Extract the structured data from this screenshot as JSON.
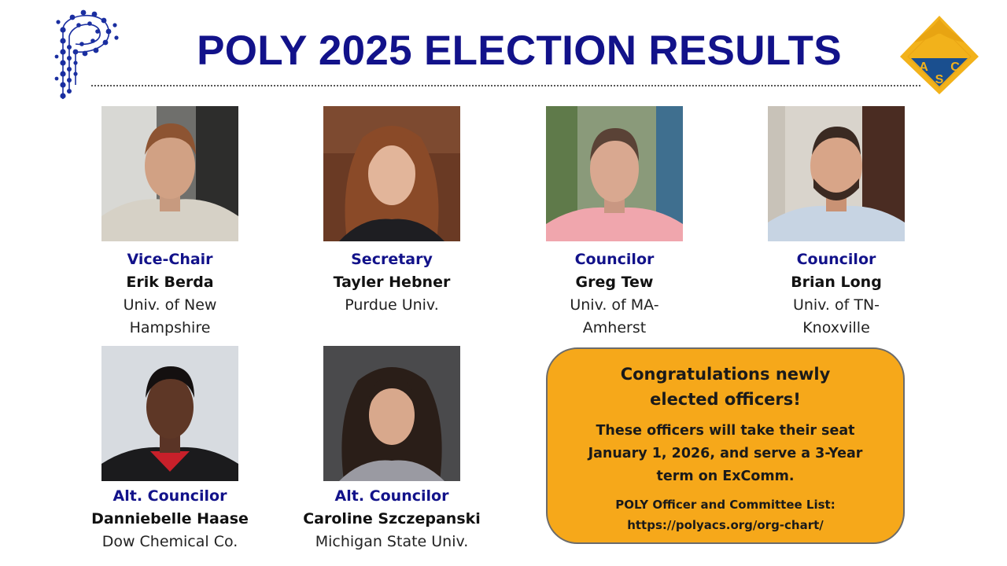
{
  "header": {
    "title": "POLY 2025 ELECTION RESULTS",
    "poly_logo": "poly-division-logo",
    "acs_logo": "acs-logo",
    "acs_logo_letters": "ACS"
  },
  "officers": [
    {
      "role": "Vice-Chair",
      "name": "Erik Berda",
      "affil_1": "Univ. of New",
      "affil_2": "Hampshire"
    },
    {
      "role": "Secretary",
      "name": "Tayler Hebner",
      "affil_1": "Purdue Univ.",
      "affil_2": ""
    },
    {
      "role": "Councilor",
      "name": "Greg Tew",
      "affil_1": "Univ. of MA-",
      "affil_2": "Amherst"
    },
    {
      "role": "Councilor",
      "name": "Brian Long",
      "affil_1": "Univ. of TN-",
      "affil_2": "Knoxville"
    },
    {
      "role": "Alt. Councilor",
      "name": "Danniebelle Haase",
      "affil_1": "Dow Chemical Co.",
      "affil_2": ""
    },
    {
      "role": "Alt. Councilor",
      "name": "Caroline Szczepanski",
      "affil_1": "Michigan State Univ.",
      "affil_2": ""
    }
  ],
  "callout": {
    "heading_1": "Congratulations newly",
    "heading_2": "elected officers!",
    "body_1": "These officers will take their seat",
    "body_2": "January 1, 2026, and serve a 3-Year",
    "body_3": "term on ExComm.",
    "list_label": "POLY Officer and Committee List:",
    "list_url": "https://polyacs.org/org-chart/"
  },
  "colors": {
    "title": "#12128a",
    "role": "#12128a",
    "callout_bg": "#f6a81a",
    "acs_gold": "#f2b21b",
    "acs_blue": "#1a4f8f"
  }
}
